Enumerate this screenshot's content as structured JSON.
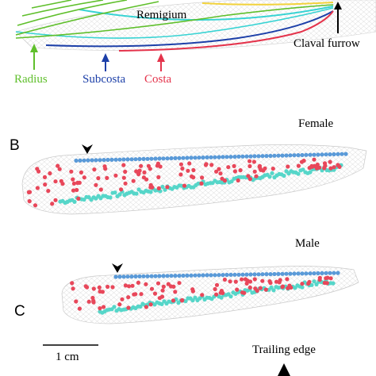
{
  "panel_a": {
    "remigium_label": "Remigium",
    "claval_furrow_label": "Claval furrow",
    "veins": [
      {
        "name": "Radius",
        "color": "#5fbf2b"
      },
      {
        "name": "Subcosta",
        "color": "#1c3fa8"
      },
      {
        "name": "Costa",
        "color": "#e4334b"
      }
    ],
    "vein_colors_extra": [
      "#37d3d3",
      "#f2d23a"
    ]
  },
  "panel_b": {
    "letter": "B",
    "sex_label": "Female",
    "marker_colors": {
      "red": "#e8475a",
      "blue": "#5a9ad8",
      "cyan": "#56d6c9"
    }
  },
  "panel_c": {
    "letter": "C",
    "sex_label": "Male"
  },
  "scale_bar_label": "1 cm",
  "trailing_edge_label": "Trailing edge"
}
